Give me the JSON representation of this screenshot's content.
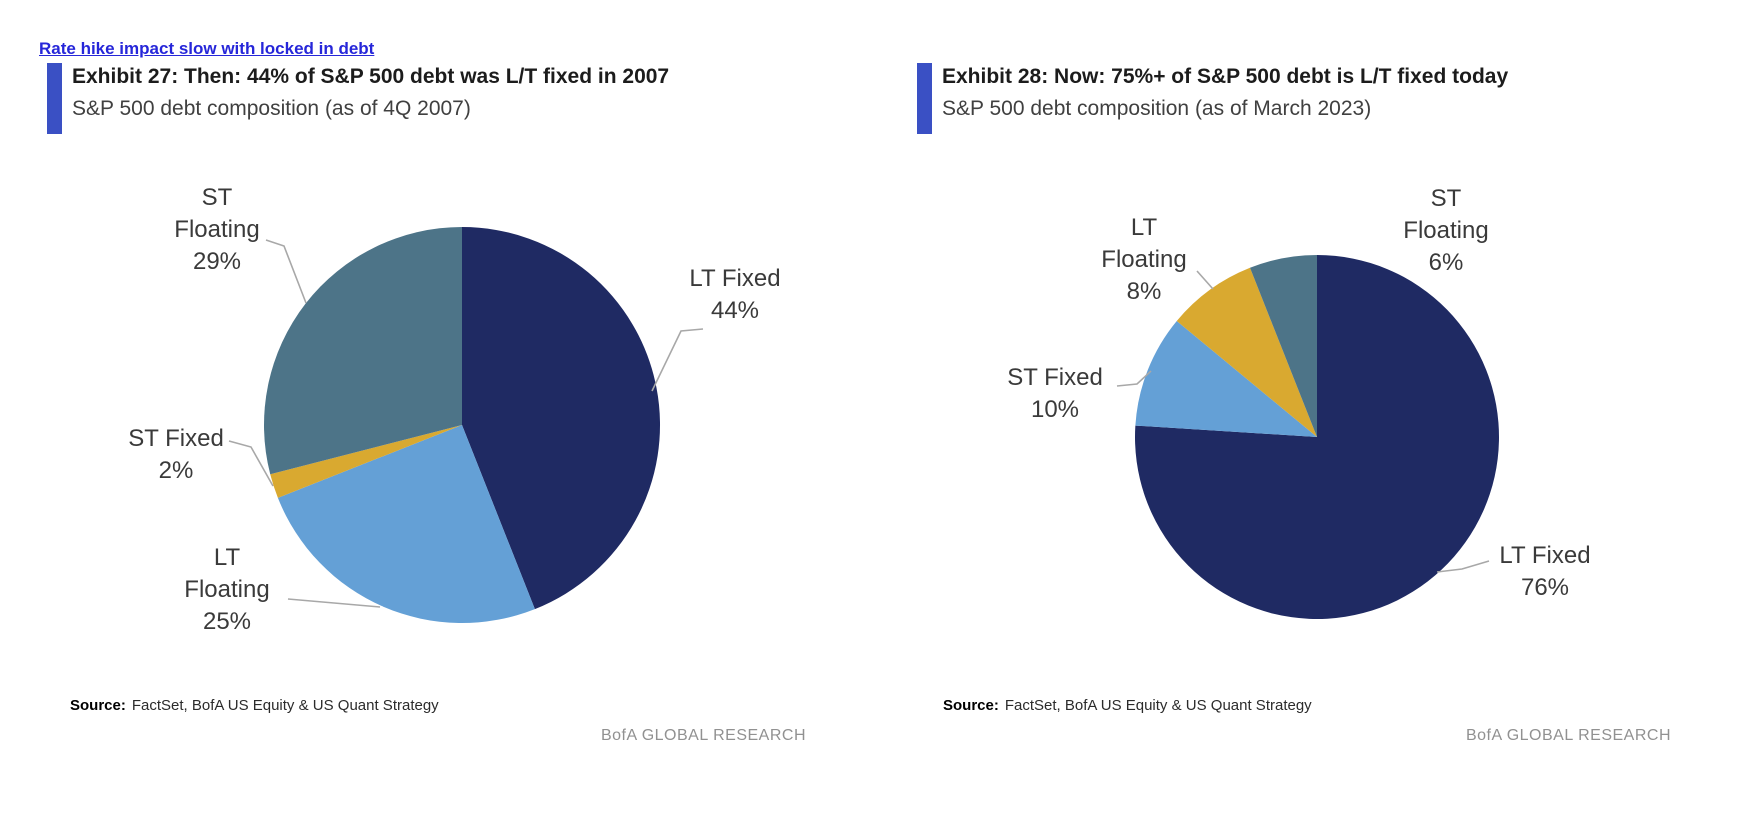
{
  "page": {
    "link_text": "Rate hike impact slow with locked in debt"
  },
  "chart_data": [
    {
      "type": "pie",
      "title": "Exhibit 27: Then: 44% of S&P 500 debt was L/T fixed in 2007",
      "subtitle": "S&P 500 debt composition (as of 4Q 2007)",
      "legend_position": "none",
      "start_angle": "12 o'clock, clockwise",
      "slices": [
        {
          "label": "LT Fixed",
          "value": 44,
          "pct_label": "44%",
          "color": "#1f2a63"
        },
        {
          "label": "LT Floating",
          "value": 25,
          "pct_label": "25%",
          "color": "#64a0d6"
        },
        {
          "label": "ST Fixed",
          "value": 2,
          "pct_label": "2%",
          "color": "#d9a930"
        },
        {
          "label": "ST Floating",
          "value": 29,
          "pct_label": "29%",
          "color": "#4d7488"
        }
      ],
      "source_label": "Source:",
      "source_text": "FactSet, BofA US Equity & US Quant Strategy",
      "footer": "BofA GLOBAL RESEARCH"
    },
    {
      "type": "pie",
      "title": "Exhibit 28: Now: 75%+ of S&P 500 debt is L/T fixed today",
      "subtitle": "S&P 500 debt composition (as of March 2023)",
      "legend_position": "none",
      "start_angle": "12 o'clock, clockwise",
      "slices": [
        {
          "label": "LT Fixed",
          "value": 76,
          "pct_label": "76%",
          "color": "#1f2a63"
        },
        {
          "label": "ST Fixed",
          "value": 10,
          "pct_label": "10%",
          "color": "#64a0d6"
        },
        {
          "label": "LT Floating",
          "value": 8,
          "pct_label": "8%",
          "color": "#d9a930"
        },
        {
          "label": "ST Floating",
          "value": 6,
          "pct_label": "6%",
          "color": "#4d7488"
        }
      ],
      "source_label": "Source:",
      "source_text": "FactSet, BofA US Equity & US Quant Strategy",
      "footer": "BofA GLOBAL RESEARCH"
    }
  ]
}
